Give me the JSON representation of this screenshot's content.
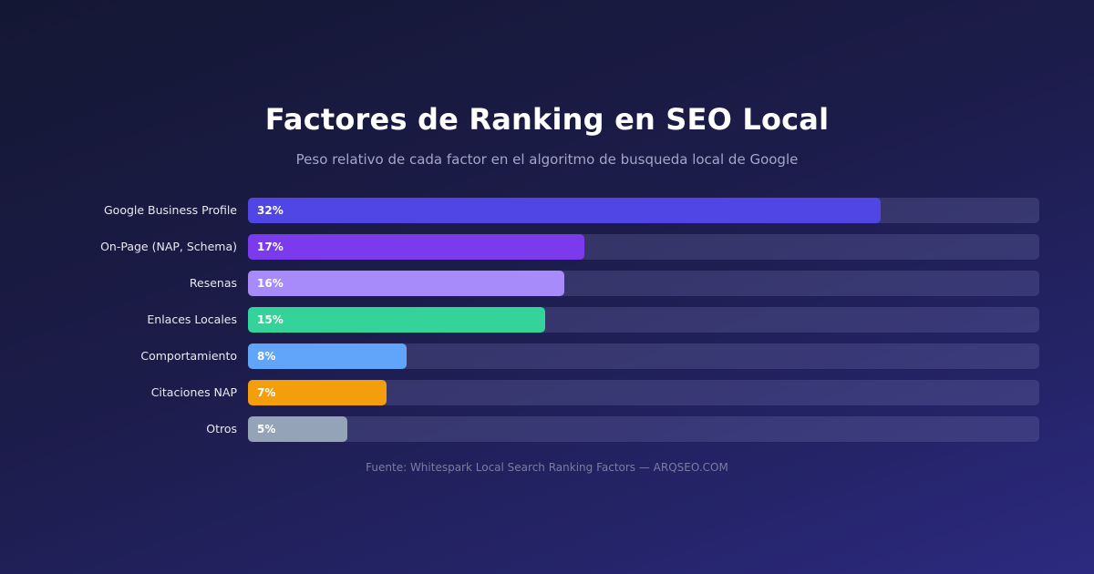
{
  "chart_data": {
    "type": "bar",
    "orientation": "horizontal",
    "title": "Factores de Ranking en SEO Local",
    "subtitle": "Peso relativo de cada factor en el algoritmo de busqueda local de Google",
    "categories": [
      "Google Business Profile",
      "On-Page (NAP, Schema)",
      "Resenas",
      "Enlaces Locales",
      "Comportamiento",
      "Citaciones NAP",
      "Otros"
    ],
    "values": [
      32,
      17,
      16,
      15,
      8,
      7,
      5
    ],
    "value_labels": [
      "32%",
      "17%",
      "16%",
      "15%",
      "8%",
      "7%",
      "5%"
    ],
    "colors": [
      "#4f46e5",
      "#7c3aed",
      "#a78bfa",
      "#34d399",
      "#60a5fa",
      "#f59e0b",
      "#94a3b8"
    ],
    "xlim": [
      0,
      40
    ],
    "grid": false,
    "legend": "none",
    "source": "Fuente: Whitespark Local Search Ranking Factors — ARQSEO.COM"
  }
}
